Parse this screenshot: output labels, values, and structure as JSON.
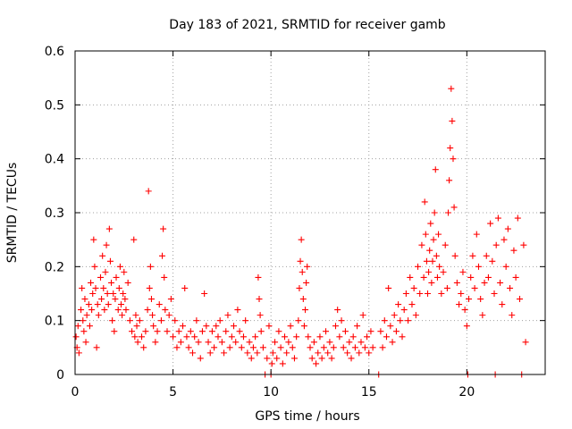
{
  "chart_data": {
    "type": "scatter",
    "title": "Day 183 of 2021, SRMTID for receiver gamb",
    "xlabel": "GPS time / hours",
    "ylabel": "SRMTID / TECUs",
    "xlim": [
      0,
      24
    ],
    "ylim": [
      0,
      0.6
    ],
    "x_ticks": [
      0,
      5,
      10,
      15,
      20
    ],
    "y_ticks": [
      0,
      0.1,
      0.2,
      0.3,
      0.4,
      0.5,
      0.6
    ],
    "x_tick_labels": [
      "0",
      "5",
      "10",
      "15",
      "20"
    ],
    "y_tick_labels": [
      "0",
      "0.1",
      "0.2",
      "0.3",
      "0.4",
      "0.5",
      "0.6"
    ],
    "grid": true,
    "marker": "plus",
    "color": "#ff0000",
    "series": [
      {
        "name": "SRMTID",
        "points": [
          [
            0.05,
            0.07
          ],
          [
            0.1,
            0.05
          ],
          [
            0.15,
            0.09
          ],
          [
            0.2,
            0.04
          ],
          [
            0.3,
            0.12
          ],
          [
            0.35,
            0.16
          ],
          [
            0.4,
            0.1
          ],
          [
            0.45,
            0.08
          ],
          [
            0.5,
            0.14
          ],
          [
            0.55,
            0.06
          ],
          [
            0.6,
            0.11
          ],
          [
            0.7,
            0.13
          ],
          [
            0.75,
            0.09
          ],
          [
            0.8,
            0.17
          ],
          [
            0.85,
            0.12
          ],
          [
            0.9,
            0.15
          ],
          [
            0.95,
            0.25
          ],
          [
            1.0,
            0.2
          ],
          [
            1.05,
            0.16
          ],
          [
            1.1,
            0.05
          ],
          [
            1.15,
            0.13
          ],
          [
            1.2,
            0.11
          ],
          [
            1.3,
            0.18
          ],
          [
            1.35,
            0.14
          ],
          [
            1.4,
            0.22
          ],
          [
            1.45,
            0.16
          ],
          [
            1.5,
            0.12
          ],
          [
            1.55,
            0.19
          ],
          [
            1.6,
            0.24
          ],
          [
            1.65,
            0.15
          ],
          [
            1.7,
            0.13
          ],
          [
            1.75,
            0.27
          ],
          [
            1.8,
            0.21
          ],
          [
            1.85,
            0.17
          ],
          [
            1.9,
            0.1
          ],
          [
            1.95,
            0.15
          ],
          [
            2.0,
            0.08
          ],
          [
            2.05,
            0.14
          ],
          [
            2.1,
            0.18
          ],
          [
            2.2,
            0.12
          ],
          [
            2.25,
            0.16
          ],
          [
            2.3,
            0.2
          ],
          [
            2.35,
            0.13
          ],
          [
            2.4,
            0.11
          ],
          [
            2.45,
            0.15
          ],
          [
            2.5,
            0.19
          ],
          [
            2.55,
            0.14
          ],
          [
            2.6,
            0.12
          ],
          [
            2.7,
            0.17
          ],
          [
            2.8,
            0.1
          ],
          [
            2.9,
            0.08
          ],
          [
            3.0,
            0.25
          ],
          [
            3.05,
            0.07
          ],
          [
            3.1,
            0.11
          ],
          [
            3.15,
            0.09
          ],
          [
            3.2,
            0.06
          ],
          [
            3.3,
            0.1
          ],
          [
            3.4,
            0.07
          ],
          [
            3.5,
            0.05
          ],
          [
            3.6,
            0.08
          ],
          [
            3.7,
            0.12
          ],
          [
            3.75,
            0.34
          ],
          [
            3.8,
            0.16
          ],
          [
            3.85,
            0.2
          ],
          [
            3.9,
            0.14
          ],
          [
            3.95,
            0.11
          ],
          [
            4.0,
            0.09
          ],
          [
            4.1,
            0.06
          ],
          [
            4.2,
            0.08
          ],
          [
            4.3,
            0.13
          ],
          [
            4.4,
            0.1
          ],
          [
            4.45,
            0.22
          ],
          [
            4.5,
            0.27
          ],
          [
            4.55,
            0.18
          ],
          [
            4.6,
            0.12
          ],
          [
            4.7,
            0.08
          ],
          [
            4.8,
            0.11
          ],
          [
            4.9,
            0.14
          ],
          [
            5.0,
            0.07
          ],
          [
            5.1,
            0.1
          ],
          [
            5.2,
            0.05
          ],
          [
            5.3,
            0.08
          ],
          [
            5.4,
            0.06
          ],
          [
            5.5,
            0.09
          ],
          [
            5.6,
            0.16
          ],
          [
            5.7,
            0.07
          ],
          [
            5.8,
            0.05
          ],
          [
            5.9,
            0.08
          ],
          [
            6.0,
            0.04
          ],
          [
            6.1,
            0.07
          ],
          [
            6.2,
            0.1
          ],
          [
            6.3,
            0.06
          ],
          [
            6.4,
            0.03
          ],
          [
            6.5,
            0.08
          ],
          [
            6.6,
            0.15
          ],
          [
            6.7,
            0.09
          ],
          [
            6.8,
            0.06
          ],
          [
            6.9,
            0.04
          ],
          [
            7.0,
            0.08
          ],
          [
            7.1,
            0.05
          ],
          [
            7.2,
            0.09
          ],
          [
            7.3,
            0.07
          ],
          [
            7.4,
            0.1
          ],
          [
            7.5,
            0.06
          ],
          [
            7.6,
            0.04
          ],
          [
            7.7,
            0.08
          ],
          [
            7.8,
            0.11
          ],
          [
            7.9,
            0.05
          ],
          [
            8.0,
            0.07
          ],
          [
            8.1,
            0.09
          ],
          [
            8.2,
            0.06
          ],
          [
            8.3,
            0.12
          ],
          [
            8.4,
            0.08
          ],
          [
            8.5,
            0.05
          ],
          [
            8.6,
            0.07
          ],
          [
            8.7,
            0.1
          ],
          [
            8.8,
            0.04
          ],
          [
            8.9,
            0.06
          ],
          [
            9.0,
            0.03
          ],
          [
            9.1,
            0.05
          ],
          [
            9.2,
            0.07
          ],
          [
            9.3,
            0.04
          ],
          [
            9.35,
            0.18
          ],
          [
            9.4,
            0.14
          ],
          [
            9.45,
            0.11
          ],
          [
            9.5,
            0.08
          ],
          [
            9.6,
            0.05
          ],
          [
            9.7,
            0.0
          ],
          [
            9.8,
            0.03
          ],
          [
            9.9,
            0.09
          ],
          [
            10.0,
            0.0
          ],
          [
            10.05,
            0.02
          ],
          [
            10.1,
            0.04
          ],
          [
            10.2,
            0.06
          ],
          [
            10.3,
            0.03
          ],
          [
            10.4,
            0.08
          ],
          [
            10.5,
            0.05
          ],
          [
            10.6,
            0.02
          ],
          [
            10.7,
            0.07
          ],
          [
            10.8,
            0.04
          ],
          [
            10.9,
            0.06
          ],
          [
            11.0,
            0.09
          ],
          [
            11.1,
            0.05
          ],
          [
            11.2,
            0.03
          ],
          [
            11.3,
            0.07
          ],
          [
            11.4,
            0.1
          ],
          [
            11.45,
            0.16
          ],
          [
            11.5,
            0.21
          ],
          [
            11.55,
            0.25
          ],
          [
            11.6,
            0.19
          ],
          [
            11.65,
            0.14
          ],
          [
            11.7,
            0.09
          ],
          [
            11.75,
            0.12
          ],
          [
            11.8,
            0.17
          ],
          [
            11.85,
            0.2
          ],
          [
            11.9,
            0.07
          ],
          [
            12.0,
            0.05
          ],
          [
            12.1,
            0.03
          ],
          [
            12.2,
            0.06
          ],
          [
            12.3,
            0.02
          ],
          [
            12.4,
            0.04
          ],
          [
            12.5,
            0.07
          ],
          [
            12.6,
            0.03
          ],
          [
            12.7,
            0.05
          ],
          [
            12.8,
            0.08
          ],
          [
            12.9,
            0.04
          ],
          [
            13.0,
            0.06
          ],
          [
            13.1,
            0.03
          ],
          [
            13.2,
            0.05
          ],
          [
            13.3,
            0.09
          ],
          [
            13.4,
            0.12
          ],
          [
            13.5,
            0.07
          ],
          [
            13.6,
            0.1
          ],
          [
            13.7,
            0.05
          ],
          [
            13.8,
            0.08
          ],
          [
            13.9,
            0.04
          ],
          [
            14.0,
            0.06
          ],
          [
            14.1,
            0.03
          ],
          [
            14.2,
            0.07
          ],
          [
            14.3,
            0.05
          ],
          [
            14.4,
            0.09
          ],
          [
            14.5,
            0.04
          ],
          [
            14.6,
            0.06
          ],
          [
            14.7,
            0.11
          ],
          [
            14.8,
            0.05
          ],
          [
            14.9,
            0.07
          ],
          [
            15.0,
            0.04
          ],
          [
            15.1,
            0.08
          ],
          [
            15.2,
            0.05
          ],
          [
            15.5,
            0.0
          ],
          [
            15.6,
            0.08
          ],
          [
            15.7,
            0.05
          ],
          [
            15.8,
            0.1
          ],
          [
            15.9,
            0.07
          ],
          [
            16.0,
            0.16
          ],
          [
            16.1,
            0.09
          ],
          [
            16.2,
            0.06
          ],
          [
            16.3,
            0.11
          ],
          [
            16.4,
            0.08
          ],
          [
            16.5,
            0.13
          ],
          [
            16.6,
            0.1
          ],
          [
            16.7,
            0.07
          ],
          [
            16.8,
            0.12
          ],
          [
            16.9,
            0.15
          ],
          [
            17.0,
            0.1
          ],
          [
            17.1,
            0.18
          ],
          [
            17.2,
            0.13
          ],
          [
            17.3,
            0.16
          ],
          [
            17.4,
            0.11
          ],
          [
            17.5,
            0.2
          ],
          [
            17.6,
            0.15
          ],
          [
            17.7,
            0.24
          ],
          [
            17.8,
            0.18
          ],
          [
            17.85,
            0.32
          ],
          [
            17.9,
            0.26
          ],
          [
            17.95,
            0.21
          ],
          [
            18.0,
            0.15
          ],
          [
            18.05,
            0.19
          ],
          [
            18.1,
            0.23
          ],
          [
            18.15,
            0.28
          ],
          [
            18.2,
            0.17
          ],
          [
            18.25,
            0.21
          ],
          [
            18.3,
            0.25
          ],
          [
            18.35,
            0.3
          ],
          [
            18.4,
            0.38
          ],
          [
            18.45,
            0.22
          ],
          [
            18.5,
            0.18
          ],
          [
            18.55,
            0.26
          ],
          [
            18.6,
            0.2
          ],
          [
            18.7,
            0.15
          ],
          [
            18.8,
            0.19
          ],
          [
            18.9,
            0.24
          ],
          [
            19.0,
            0.16
          ],
          [
            19.05,
            0.3
          ],
          [
            19.1,
            0.36
          ],
          [
            19.15,
            0.42
          ],
          [
            19.2,
            0.53
          ],
          [
            19.25,
            0.47
          ],
          [
            19.3,
            0.4
          ],
          [
            19.35,
            0.31
          ],
          [
            19.4,
            0.22
          ],
          [
            19.5,
            0.17
          ],
          [
            19.6,
            0.13
          ],
          [
            19.7,
            0.15
          ],
          [
            19.8,
            0.19
          ],
          [
            19.9,
            0.12
          ],
          [
            20.0,
            0.09
          ],
          [
            20.05,
            0.0
          ],
          [
            20.1,
            0.14
          ],
          [
            20.2,
            0.18
          ],
          [
            20.3,
            0.22
          ],
          [
            20.4,
            0.16
          ],
          [
            20.5,
            0.26
          ],
          [
            20.6,
            0.2
          ],
          [
            20.7,
            0.14
          ],
          [
            20.8,
            0.11
          ],
          [
            20.9,
            0.17
          ],
          [
            21.0,
            0.22
          ],
          [
            21.1,
            0.18
          ],
          [
            21.2,
            0.28
          ],
          [
            21.3,
            0.21
          ],
          [
            21.4,
            0.15
          ],
          [
            21.45,
            0.0
          ],
          [
            21.5,
            0.24
          ],
          [
            21.6,
            0.29
          ],
          [
            21.7,
            0.17
          ],
          [
            21.8,
            0.13
          ],
          [
            21.9,
            0.25
          ],
          [
            22.0,
            0.2
          ],
          [
            22.1,
            0.27
          ],
          [
            22.2,
            0.16
          ],
          [
            22.3,
            0.11
          ],
          [
            22.4,
            0.23
          ],
          [
            22.5,
            0.18
          ],
          [
            22.6,
            0.29
          ],
          [
            22.7,
            0.14
          ],
          [
            22.8,
            0.0
          ],
          [
            22.9,
            0.24
          ],
          [
            23.0,
            0.06
          ]
        ]
      }
    ]
  }
}
